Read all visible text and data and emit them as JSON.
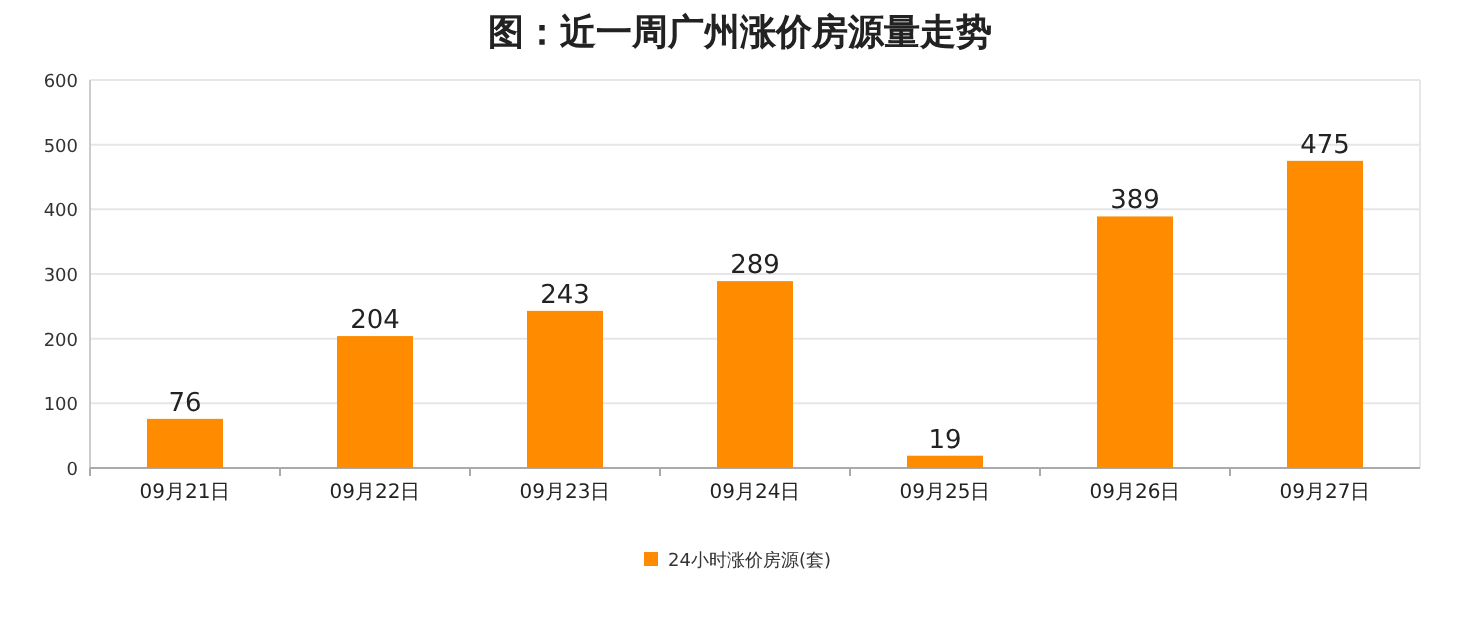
{
  "chart_data": {
    "type": "bar",
    "title": "图：近一周广州涨价房源量走势",
    "categories": [
      "09月21日",
      "09月22日",
      "09月23日",
      "09月24日",
      "09月25日",
      "09月26日",
      "09月27日"
    ],
    "series": [
      {
        "name": "24小时涨价房源(套)",
        "color": "#ff8c00",
        "values": [
          76,
          204,
          243,
          289,
          19,
          389,
          475
        ]
      }
    ],
    "ylim": [
      0,
      600
    ],
    "yticks": [
      0,
      100,
      200,
      300,
      400,
      500,
      600
    ],
    "grid": "y",
    "legend": "bottom",
    "data_labels": true
  }
}
